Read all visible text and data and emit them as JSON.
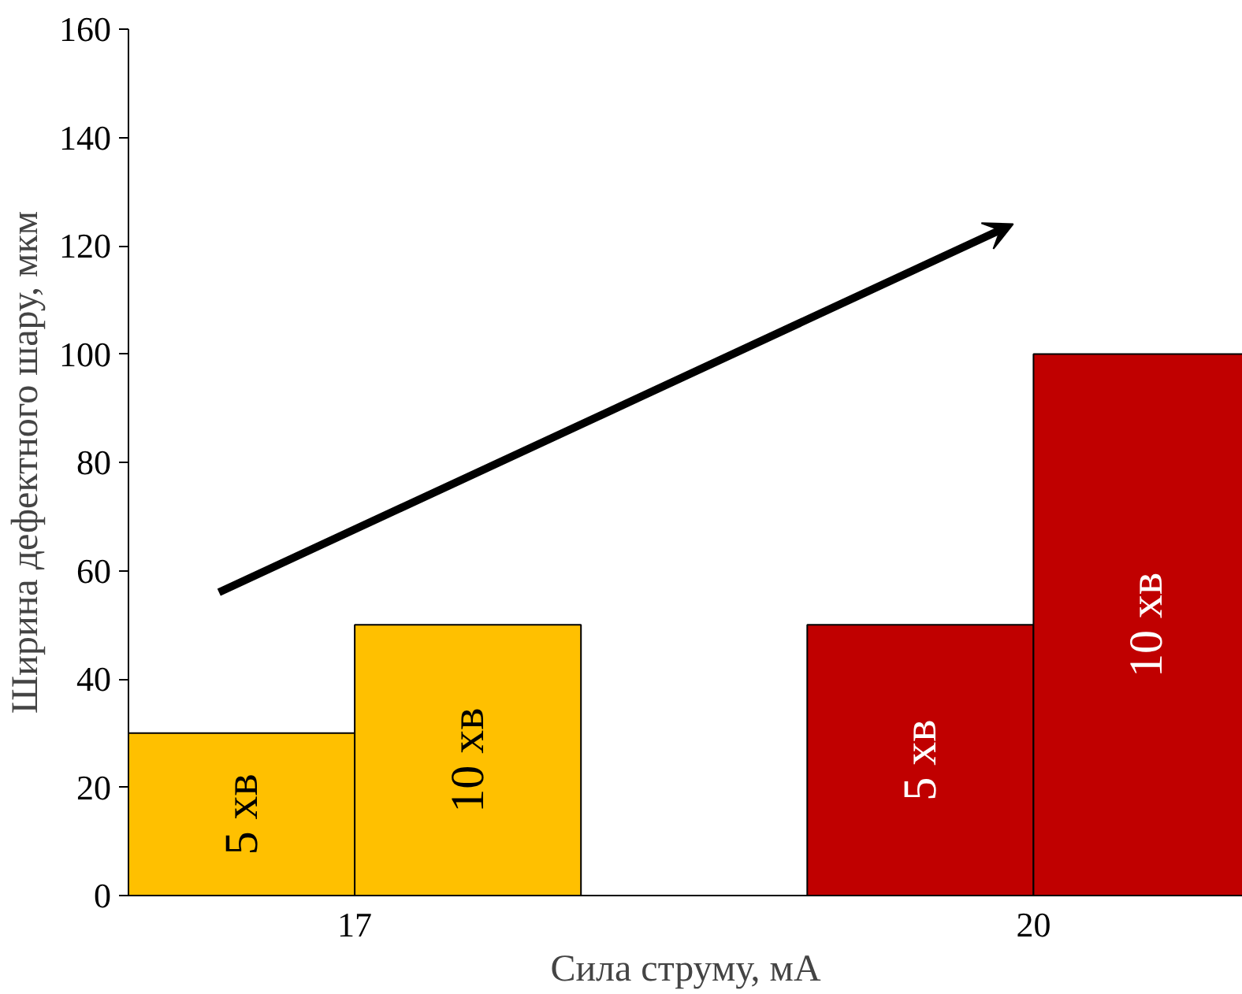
{
  "chart_data": {
    "type": "bar",
    "xlabel": "Сила струму, мА",
    "ylabel": "Ширина дефектного шару, мкм",
    "categories": [
      "17",
      "20"
    ],
    "series": [
      {
        "name": "5 хв",
        "colors": [
          "#ffc000",
          "#c00000"
        ],
        "values": [
          30,
          50
        ]
      },
      {
        "name": "10 хв",
        "colors": [
          "#ffc000",
          "#c00000"
        ],
        "values": [
          50,
          100
        ]
      }
    ],
    "ylim": [
      0,
      160
    ],
    "yticks": [
      0,
      20,
      40,
      60,
      80,
      100,
      120,
      140,
      160
    ],
    "grid": false,
    "legend": false
  }
}
